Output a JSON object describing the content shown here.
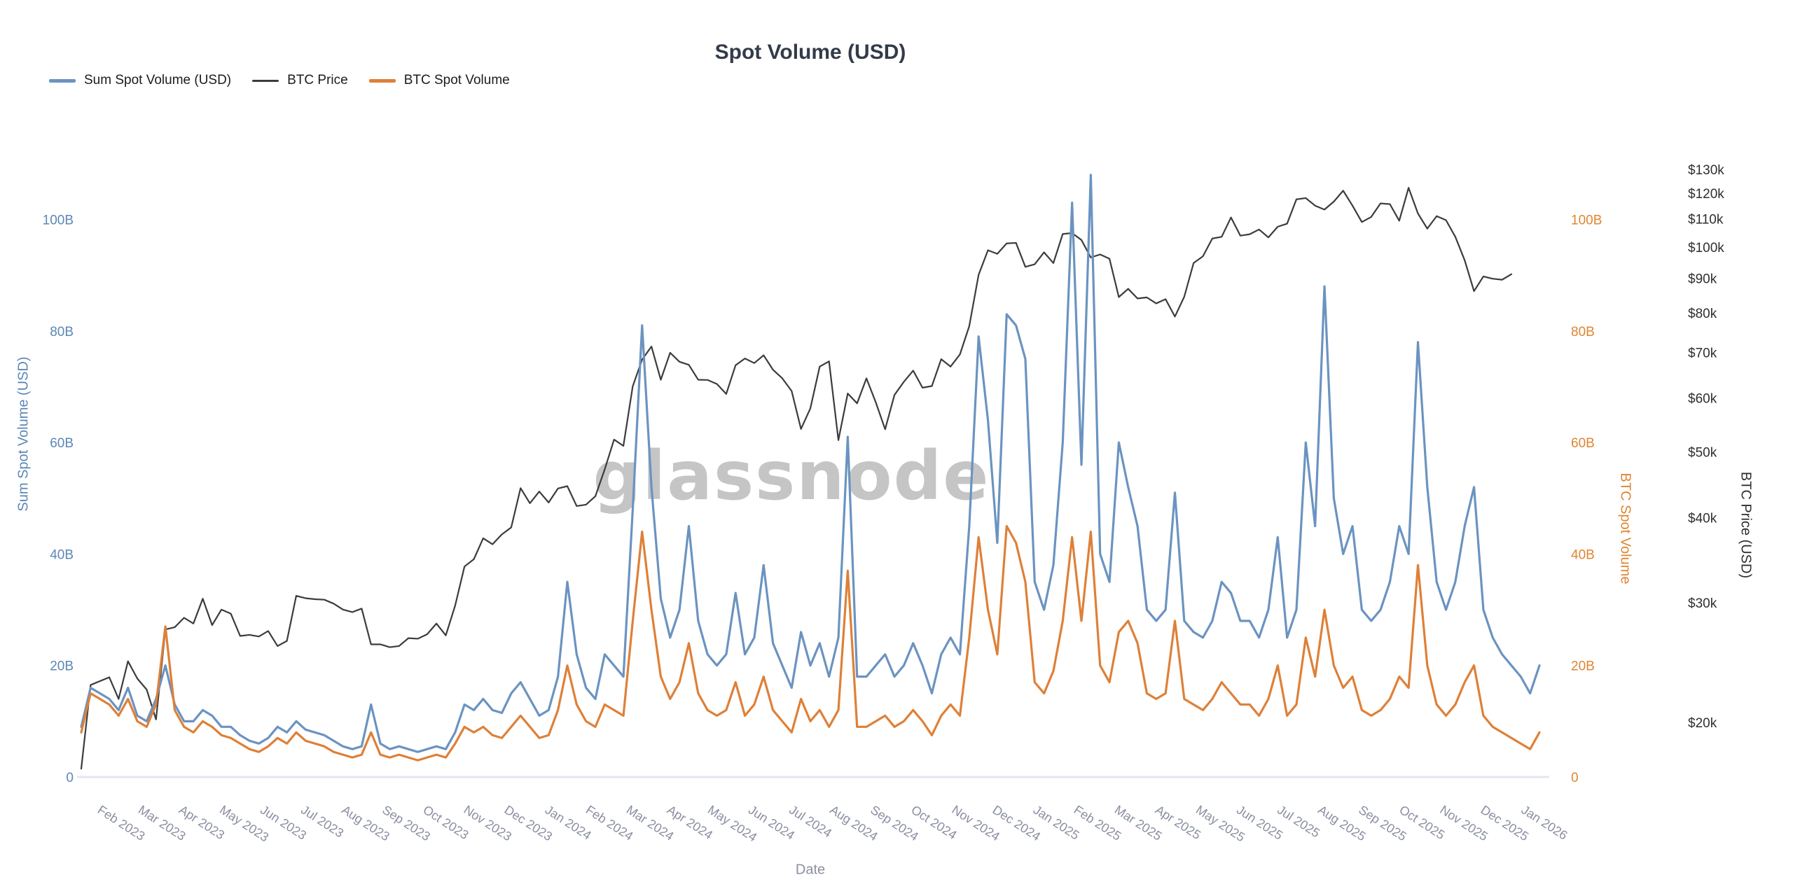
{
  "page": {
    "title": "Spot Volume (USD)",
    "watermark": "glassnode"
  },
  "legend": {
    "items": [
      {
        "label": "Sum Spot Volume (USD)"
      },
      {
        "label": "BTC Price"
      },
      {
        "label": "BTC Spot Volume"
      }
    ]
  },
  "chart_data": {
    "type": "line",
    "title": "Spot Volume (USD)",
    "xlabel": "Date",
    "x_start": "2023-01-13",
    "x_step_days": 7,
    "x_tick_labels": [
      "Feb 2023",
      "Mar 2023",
      "Apr 2023",
      "May 2023",
      "Jun 2023",
      "Jul 2023",
      "Aug 2023",
      "Sep 2023",
      "Oct 2023",
      "Nov 2023",
      "Dec 2023",
      "Jan 2024",
      "Feb 2024",
      "Mar 2024",
      "Apr 2024",
      "May 2024",
      "Jun 2024",
      "Jul 2024",
      "Aug 2024",
      "Sep 2024",
      "Oct 2024",
      "Nov 2024",
      "Dec 2024",
      "Jan 2025",
      "Feb 2025",
      "Mar 2025",
      "Apr 2025",
      "May 2025",
      "Jun 2025",
      "Jul 2025",
      "Aug 2025",
      "Sep 2025",
      "Oct 2025",
      "Nov 2025",
      "Dec 2025",
      "Jan 2026"
    ],
    "left_axis": {
      "title": "Sum Spot Volume (USD)",
      "units": "billions USD",
      "range": [
        0,
        110
      ],
      "scale": "linear",
      "ticks": [
        {
          "label": "0",
          "value": 0
        },
        {
          "label": "20B",
          "value": 20
        },
        {
          "label": "40B",
          "value": 40
        },
        {
          "label": "60B",
          "value": 60
        },
        {
          "label": "80B",
          "value": 80
        },
        {
          "label": "100B",
          "value": 100
        }
      ]
    },
    "right_volume_axis": {
      "title": "BTC Spot Volume",
      "units": "billions USD",
      "range": [
        0,
        110
      ],
      "scale": "linear",
      "ticks": [
        {
          "label": "0",
          "value": 0
        },
        {
          "label": "20B",
          "value": 20
        },
        {
          "label": "40B",
          "value": 40
        },
        {
          "label": "60B",
          "value": 60
        },
        {
          "label": "80B",
          "value": 80
        },
        {
          "label": "100B",
          "value": 100
        }
      ]
    },
    "right_price_axis": {
      "title": "BTC Price (USD)",
      "units": "USD",
      "scale": "log",
      "ticks": [
        {
          "label": "$20k",
          "value": 20000
        },
        {
          "label": "$30k",
          "value": 30000
        },
        {
          "label": "$40k",
          "value": 40000
        },
        {
          "label": "$50k",
          "value": 50000
        },
        {
          "label": "$60k",
          "value": 60000
        },
        {
          "label": "$70k",
          "value": 70000
        },
        {
          "label": "$80k",
          "value": 80000
        },
        {
          "label": "$90k",
          "value": 90000
        },
        {
          "label": "$100k",
          "value": 100000
        },
        {
          "label": "$110k",
          "value": 110000
        },
        {
          "label": "$120k",
          "value": 120000
        },
        {
          "label": "$130k",
          "value": 130000
        }
      ]
    },
    "grid": false,
    "legend_position": "top-left",
    "series": [
      {
        "name": "Sum Spot Volume (USD)",
        "axis": "left_volume",
        "color": "#6B93C0",
        "stroke_width": 3.2,
        "values": [
          9,
          16,
          15,
          14,
          12,
          16,
          11,
          10,
          14,
          20,
          13,
          10,
          10,
          12,
          11,
          9,
          9,
          7.5,
          6.5,
          6,
          7,
          9,
          8,
          10,
          8.5,
          8,
          7.5,
          6.5,
          5.5,
          5,
          5.5,
          13,
          6,
          5,
          5.5,
          5,
          4.5,
          5,
          5.5,
          5,
          8,
          13,
          12,
          14,
          12,
          11.5,
          15,
          17,
          14,
          11,
          12,
          18,
          35,
          22,
          16,
          14,
          22,
          20,
          18,
          48,
          81,
          52,
          32,
          25,
          30,
          45,
          28,
          22,
          20,
          22,
          33,
          22,
          25,
          38,
          24,
          20,
          16,
          26,
          20,
          24,
          18,
          25,
          61,
          18,
          18,
          20,
          22,
          18,
          20,
          24,
          20,
          15,
          22,
          25,
          22,
          45,
          79,
          64,
          42,
          83,
          81,
          75,
          35,
          30,
          38,
          60,
          103,
          56,
          108,
          40,
          35,
          60,
          52,
          45,
          30,
          28,
          30,
          51,
          28,
          26,
          25,
          28,
          35,
          33,
          28,
          28,
          25,
          30,
          43,
          25,
          30,
          60,
          45,
          88,
          50,
          40,
          45,
          30,
          28,
          30,
          35,
          45,
          40,
          78,
          52,
          35,
          30,
          35,
          45,
          52,
          30,
          25,
          22,
          20,
          18,
          15,
          20
        ]
      },
      {
        "name": "BTC Price",
        "axis": "right_price",
        "color": "#3C3C3C",
        "stroke_width": 2.2,
        "values": [
          17100,
          22700,
          23000,
          23300,
          21650,
          24600,
          23200,
          22350,
          20200,
          27400,
          27600,
          28500,
          27950,
          30400,
          27800,
          29300,
          28900,
          26800,
          26900,
          26750,
          27250,
          25900,
          26350,
          30700,
          30450,
          30350,
          30300,
          29900,
          29300,
          29050,
          29400,
          26050,
          26050,
          25800,
          25900,
          26600,
          26550,
          26950,
          27950,
          26850,
          29700,
          33900,
          34750,
          37300,
          36550,
          37800,
          38700,
          44200,
          42000,
          43700,
          42100,
          44150,
          44500,
          41600,
          41800,
          43000,
          47100,
          52100,
          51000,
          62400,
          68300,
          71400,
          63800,
          69900,
          67800,
          67100,
          63800,
          63750,
          62900,
          60800,
          67000,
          68550,
          67500,
          69300,
          66000,
          64100,
          61400,
          54000,
          57900,
          66700,
          67900,
          52000,
          60900,
          58900,
          64100,
          59100,
          53950,
          60600,
          63350,
          65800,
          62100,
          62450,
          68400,
          66700,
          69500,
          76500,
          91000,
          98900,
          97700,
          101200,
          101400,
          93500,
          94300,
          98200,
          94700,
          104500,
          104800,
          102400,
          96500,
          97500,
          96100,
          84400,
          86800,
          84000,
          84300,
          82600,
          83800,
          79000,
          84500,
          94700,
          96900,
          102900,
          103500,
          110500,
          103900,
          104400,
          106100,
          103300,
          107100,
          108200,
          117500,
          118000,
          115000,
          113500,
          116600,
          121000,
          115000,
          108800,
          110700,
          115900,
          115600,
          109300,
          122200,
          112000,
          106400,
          111000,
          109500,
          103500,
          95600,
          86100,
          90500,
          89800,
          89500,
          91200,
          null,
          null,
          null
        ]
      },
      {
        "name": "BTC Spot Volume",
        "axis": "right_volume",
        "color": "#DE8038",
        "stroke_width": 3.2,
        "values": [
          8,
          15,
          14,
          13,
          11,
          14,
          10,
          9,
          13,
          27,
          12,
          9,
          8,
          10,
          9,
          7.5,
          7,
          6,
          5,
          4.5,
          5.5,
          7,
          6,
          8,
          6.5,
          6,
          5.5,
          4.5,
          4,
          3.5,
          4,
          8,
          4,
          3.5,
          4,
          3.5,
          3,
          3.5,
          4,
          3.5,
          6,
          9,
          8,
          9,
          7.5,
          7,
          9,
          11,
          9,
          7,
          7.5,
          12,
          20,
          13,
          10,
          9,
          13,
          12,
          11,
          28,
          44,
          30,
          18,
          14,
          17,
          24,
          15,
          12,
          11,
          12,
          17,
          11,
          13,
          18,
          12,
          10,
          8,
          14,
          10,
          12,
          9,
          12,
          37,
          9,
          9,
          10,
          11,
          9,
          10,
          12,
          10,
          7.5,
          11,
          13,
          11,
          25,
          43,
          30,
          22,
          45,
          42,
          35,
          17,
          15,
          19,
          28,
          43,
          28,
          44,
          20,
          17,
          26,
          28,
          24,
          15,
          14,
          15,
          28,
          14,
          13,
          12,
          14,
          17,
          15,
          13,
          13,
          11,
          14,
          20,
          11,
          13,
          25,
          18,
          30,
          20,
          16,
          18,
          12,
          11,
          12,
          14,
          18,
          16,
          38,
          20,
          13,
          11,
          13,
          17,
          20,
          11,
          9,
          8,
          7,
          6,
          5,
          8
        ]
      }
    ],
    "annotations": {
      "notable_points": [
        {
          "date": "2024-03-08",
          "series": "Sum Spot Volume (USD)",
          "value_billions": 81
        },
        {
          "date": "2024-08-05",
          "series": "Sum Spot Volume (USD)",
          "value_billions": 61
        },
        {
          "date": "2025-02-03",
          "series": "Sum Spot Volume (USD)",
          "value_billions": 108
        },
        {
          "date": "2025-08-01",
          "series": "Sum Spot Volume (USD)",
          "value_billions": 88
        },
        {
          "date": "2025-10-10",
          "series": "Sum Spot Volume (USD)",
          "value_billions": 78
        }
      ]
    },
    "colors": {
      "sum_spot_volume_line": "#6B93C0",
      "btc_price_line": "#3C3C3C",
      "btc_spot_volume_line": "#DE8038",
      "left_tick_labels": "#5C87B5",
      "right_volume_tick_labels": "#DE8532",
      "price_tick_labels": "#2F2F2F",
      "month_tick_labels": "#8A8FA0",
      "baseline": "#E4E7EF",
      "title": "#333B4A",
      "watermark": "#BCBCBC"
    }
  }
}
